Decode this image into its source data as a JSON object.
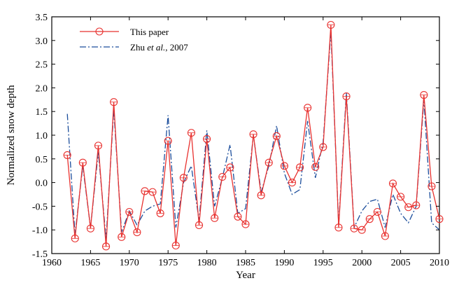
{
  "chart_data": {
    "type": "line",
    "xlabel": "Year",
    "ylabel": "Normalized snow depth",
    "xlim": [
      1960,
      2010
    ],
    "ylim": [
      -1.5,
      3.5
    ],
    "xticks": [
      "1960",
      "1965",
      "1970",
      "1975",
      "1980",
      "1985",
      "1990",
      "1995",
      "2000",
      "2005",
      "2010"
    ],
    "yticks": [
      "-1.5",
      "-1.0",
      "-0.5",
      "0.0",
      "0.5",
      "1.0",
      "1.5",
      "2.0",
      "2.5",
      "3.0",
      "3.5"
    ],
    "grid": false,
    "legend_position": "top-left",
    "series": [
      {
        "name": "This paper",
        "color": "#e8312f",
        "style": "solid-with-circle-markers",
        "x": [
          1962,
          1963,
          1964,
          1965,
          1966,
          1967,
          1968,
          1969,
          1970,
          1971,
          1972,
          1973,
          1974,
          1975,
          1976,
          1977,
          1978,
          1979,
          1980,
          1981,
          1982,
          1983,
          1984,
          1985,
          1986,
          1987,
          1988,
          1989,
          1990,
          1991,
          1992,
          1993,
          1994,
          1995,
          1996,
          1997,
          1998,
          1999,
          2000,
          2001,
          2002,
          2003,
          2004,
          2005,
          2006,
          2007,
          2008,
          2009,
          2010
        ],
        "values": [
          0.58,
          -1.18,
          0.42,
          -0.97,
          0.78,
          -1.35,
          1.7,
          -1.15,
          -0.62,
          -1.05,
          -0.18,
          -0.2,
          -0.65,
          0.88,
          -1.33,
          0.1,
          1.05,
          -0.9,
          0.92,
          -0.75,
          0.12,
          0.32,
          -0.72,
          -0.88,
          1.02,
          -0.27,
          0.42,
          0.98,
          0.35,
          0.0,
          0.32,
          1.58,
          0.33,
          0.75,
          3.33,
          -0.95,
          1.82,
          -0.97,
          -1.0,
          -0.77,
          -0.62,
          -1.13,
          -0.02,
          -0.3,
          -0.52,
          -0.48,
          1.85,
          -0.08,
          -0.77
        ]
      },
      {
        "name": "Zhu et al., 2007",
        "name_parts": [
          "Zhu ",
          "et al.",
          ", 2007"
        ],
        "color": "#1c4e9c",
        "style": "dash-dot",
        "x": [
          1962,
          1963,
          1964,
          1965,
          1966,
          1967,
          1968,
          1969,
          1970,
          1971,
          1972,
          1973,
          1974,
          1975,
          1976,
          1977,
          1978,
          1979,
          1980,
          1981,
          1982,
          1983,
          1984,
          1985,
          1986,
          1987,
          1988,
          1989,
          1990,
          1991,
          1992,
          1993,
          1994,
          1995,
          1996,
          1997,
          1998,
          1999,
          2000,
          2001,
          2002,
          2003,
          2004,
          2005,
          2006,
          2007,
          2008,
          2009,
          2010
        ],
        "values": [
          1.45,
          -1.1,
          0.35,
          -0.95,
          0.65,
          -1.2,
          1.55,
          -1.05,
          -0.6,
          -0.9,
          -0.6,
          -0.5,
          -0.45,
          1.42,
          -0.95,
          0.0,
          0.35,
          -0.8,
          1.1,
          -0.5,
          0.1,
          0.8,
          -0.65,
          -0.55,
          1.0,
          -0.2,
          0.35,
          1.2,
          0.2,
          -0.25,
          -0.15,
          1.3,
          0.1,
          0.85,
          3.2,
          -0.9,
          1.9,
          -0.95,
          -0.6,
          -0.4,
          -0.35,
          -0.95,
          -0.25,
          -0.65,
          -0.85,
          -0.5,
          1.75,
          -0.85,
          -1.0
        ]
      }
    ]
  }
}
